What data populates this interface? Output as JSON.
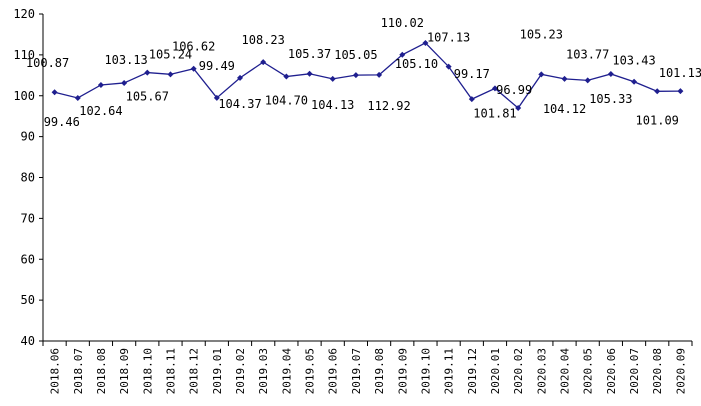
{
  "chart_data": {
    "type": "line",
    "title": "",
    "xlabel": "",
    "ylabel": "",
    "ylim": [
      40,
      120
    ],
    "yticks": [
      40,
      50,
      60,
      70,
      80,
      90,
      100,
      110,
      120
    ],
    "grid": false,
    "legend": "none",
    "line_color": "#1f1f8f",
    "categories": [
      "2018.06",
      "2018.07",
      "2018.08",
      "2018.09",
      "2018.10",
      "2018.11",
      "2018.12",
      "2019.01",
      "2019.02",
      "2019.03",
      "2019.04",
      "2019.05",
      "2019.06",
      "2019.07",
      "2019.08",
      "2019.09",
      "2019.10",
      "2019.11",
      "2019.12",
      "2020.01",
      "2020.02",
      "2020.03",
      "2020.04",
      "2020.05",
      "2020.06",
      "2020.07",
      "2020.08",
      "2020.09"
    ],
    "series": [
      {
        "values": [
          100.87,
          99.46,
          102.64,
          103.13,
          105.67,
          105.24,
          106.62,
          99.49,
          104.37,
          108.23,
          104.7,
          105.37,
          104.13,
          105.05,
          105.1,
          110.02,
          112.92,
          107.13,
          99.17,
          101.81,
          96.99,
          105.23,
          104.12,
          103.77,
          105.33,
          103.43,
          101.09,
          101.13
        ],
        "labels": [
          "100.87",
          "99.46",
          "102.64",
          "103.13",
          "105.67",
          "105.24",
          "106.62",
          "99.49",
          "104.37",
          "108.23",
          "104.70",
          "105.37",
          "104.13",
          "105.05",
          "105.10",
          "110.02",
          "112.92",
          "107.13",
          "99.17",
          "101.81",
          "96.99",
          "105.23",
          "104.12",
          "103.77",
          "105.33",
          "103.43",
          "101.09",
          "101.13"
        ]
      }
    ]
  }
}
